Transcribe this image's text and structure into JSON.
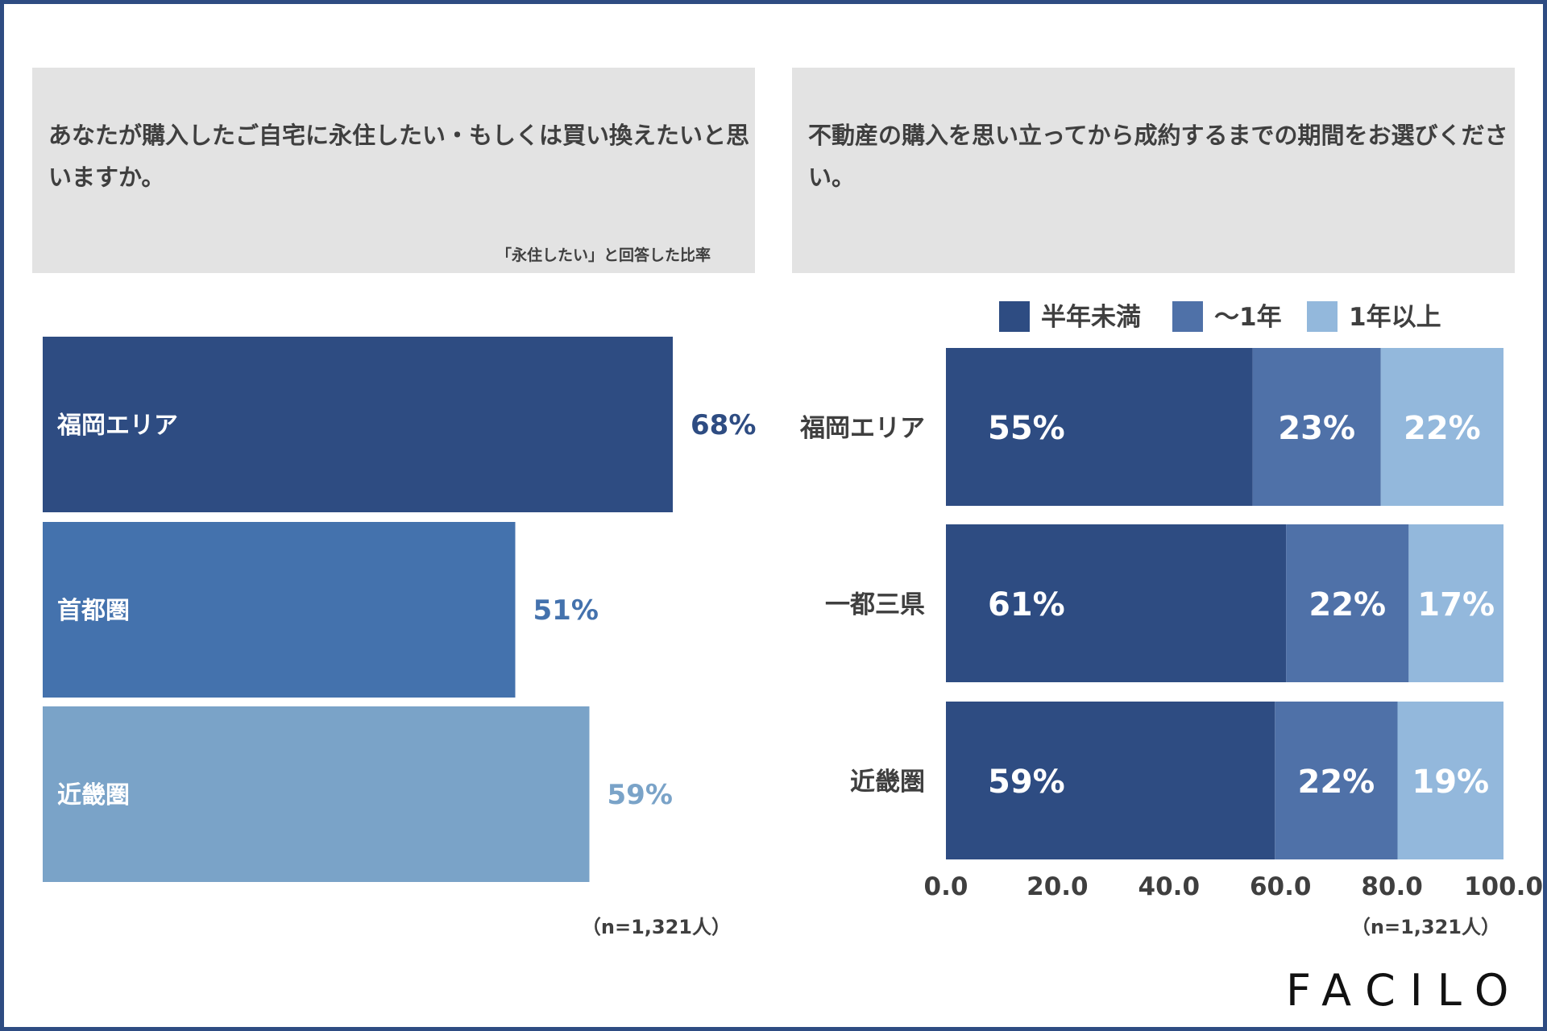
{
  "left_panel": {
    "question": "あなたが購入したご自宅に永住したい・もしくは買い換えたいと思いますか。",
    "note": "「永住したい」と回答した比率",
    "sample": "（n=1,321人）"
  },
  "right_panel": {
    "question": "不動産の購入を思い立ってから成約するまでの期間をお選びください。",
    "sample": "（n=1,321人）"
  },
  "logo": "FACILO",
  "chart_data": [
    {
      "type": "bar",
      "orientation": "horizontal",
      "categories": [
        "福岡エリア",
        "首都圏",
        "近畿圏"
      ],
      "values": [
        68,
        51,
        59
      ],
      "value_labels": [
        "68%",
        "51%",
        "59%"
      ],
      "colors": [
        "#2e4c82",
        "#4472ad",
        "#7aa3c8"
      ],
      "xlim": [
        0,
        100
      ],
      "title": "",
      "xlabel": "",
      "ylabel": ""
    },
    {
      "type": "bar",
      "orientation": "horizontal",
      "stacked": true,
      "categories": [
        "福岡エリア",
        "一都三県",
        "近畿圏"
      ],
      "series": [
        {
          "name": "半年未満",
          "values": [
            55,
            61,
            59
          ],
          "labels": [
            "55%",
            "61%",
            "59%"
          ],
          "color": "#2e4c82"
        },
        {
          "name": "〜1年",
          "values": [
            23,
            22,
            22
          ],
          "labels": [
            "23%",
            "22%",
            "22%"
          ],
          "color": "#4f71a8"
        },
        {
          "name": "1年以上",
          "values": [
            22,
            17,
            19
          ],
          "labels": [
            "22%",
            "17%",
            "19%"
          ],
          "color": "#93b8dc"
        }
      ],
      "xlim": [
        0,
        100
      ],
      "xticks": [
        "0.0",
        "20.0",
        "40.0",
        "60.0",
        "80.0",
        "100.0"
      ],
      "legend_position": "top",
      "title": "",
      "xlabel": "",
      "ylabel": ""
    }
  ]
}
